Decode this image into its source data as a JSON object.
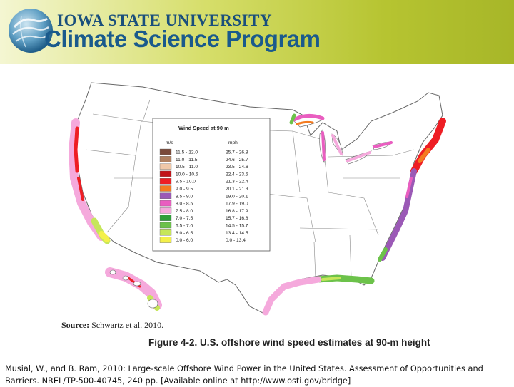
{
  "header": {
    "university": "IOWA STATE UNIVERSITY",
    "program": "Climate Science Program",
    "logo_icon": "globe-logo-icon"
  },
  "map": {
    "legend": {
      "title": "Wind Speed at 90 m",
      "col_ms": "m/s",
      "col_mph": "mph",
      "rows": [
        {
          "ms": "11.5 - 12.0",
          "mph": "25.7 - 26.8",
          "color": "#7a4a3a"
        },
        {
          "ms": "11.0 - 11.5",
          "mph": "24.6 - 25.7",
          "color": "#b08060"
        },
        {
          "ms": "10.5 - 11.0",
          "mph": "23.5 - 24.6",
          "color": "#f0c8a8"
        },
        {
          "ms": "10.0 - 10.5",
          "mph": "22.4 - 23.5",
          "color": "#c2141a"
        },
        {
          "ms": "9.5 - 10.0",
          "mph": "21.3 - 22.4",
          "color": "#ee1e24"
        },
        {
          "ms": "9.0 - 9.5",
          "mph": "20.1 - 21.3",
          "color": "#f47b20"
        },
        {
          "ms": "8.5 - 9.0",
          "mph": "19.0 - 20.1",
          "color": "#9b59b6"
        },
        {
          "ms": "8.0 - 8.5",
          "mph": "17.9 - 19.0",
          "color": "#e95ec0"
        },
        {
          "ms": "7.5 - 8.0",
          "mph": "16.8 - 17.9",
          "color": "#f5a9dc"
        },
        {
          "ms": "7.0 - 7.5",
          "mph": "15.7 - 16.8",
          "color": "#2e9e3a"
        },
        {
          "ms": "6.5 - 7.0",
          "mph": "14.5 - 15.7",
          "color": "#6cc24a"
        },
        {
          "ms": "6.0 - 6.5",
          "mph": "13.4 - 14.5",
          "color": "#c6e65a"
        },
        {
          "ms": "0.0 - 6.0",
          "mph": "0.0 - 13.4",
          "color": "#f4f04a"
        }
      ]
    }
  },
  "source": {
    "label": "Source:",
    "text": "Schwartz et al. 2010."
  },
  "figure_caption": "Figure 4-2. U.S. offshore wind speed estimates at 90-m height",
  "citation": "Musial, W., and B. Ram, 2010: Large-scale Offshore Wind Power in the United States. Assessment of Opportunities and Barriers. NREL/TP-500-40745, 240 pp. [Available online at http://www.osti.gov/bridge]"
}
